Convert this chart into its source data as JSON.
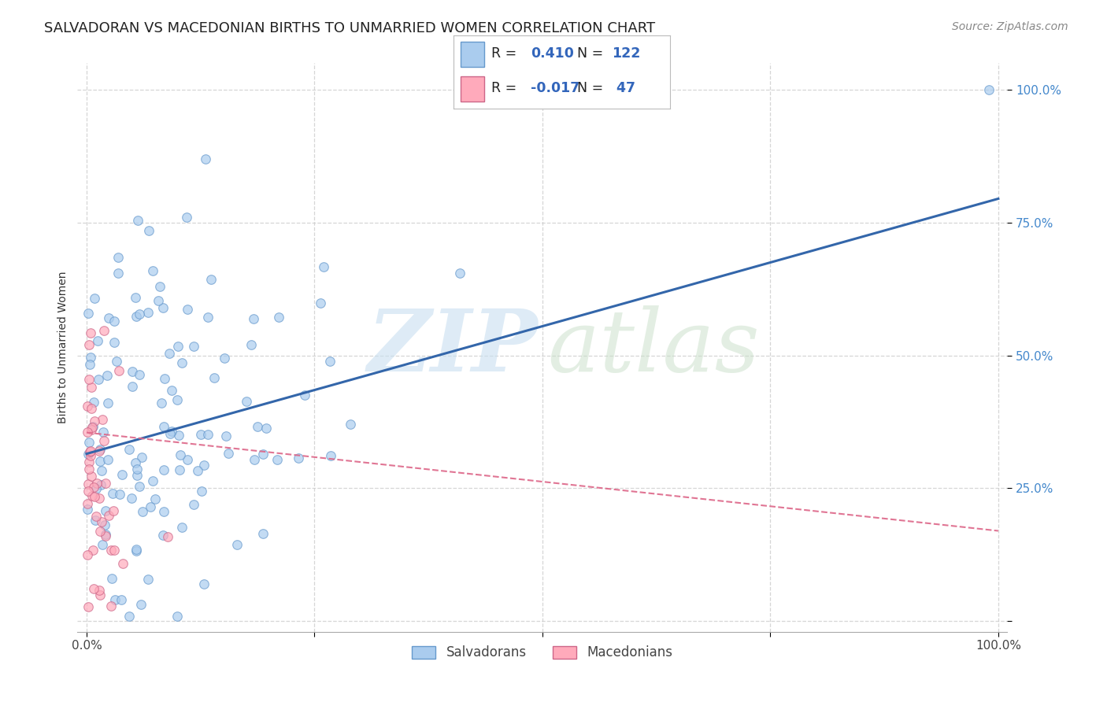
{
  "title": "SALVADORAN VS MACEDONIAN BIRTHS TO UNMARRIED WOMEN CORRELATION CHART",
  "source": "Source: ZipAtlas.com",
  "ylabel": "Births to Unmarried Women",
  "background_color": "#ffffff",
  "grid_color": "#cccccc",
  "blue_scatter_color": "#aaccee",
  "blue_scatter_edge": "#6699cc",
  "pink_scatter_color": "#ffaabb",
  "pink_scatter_edge": "#cc6688",
  "blue_line_color": "#3366aa",
  "pink_line_color": "#dd6688",
  "blue_line": {
    "x0": 0.0,
    "y0": 0.315,
    "x1": 1.0,
    "y1": 0.795
  },
  "pink_line": {
    "x0": 0.0,
    "y0": 0.355,
    "x1": 0.13,
    "y1": 0.335
  },
  "xlim": [
    -0.01,
    1.01
  ],
  "ylim": [
    -0.02,
    1.05
  ],
  "xticks": [
    0.0,
    0.25,
    0.5,
    0.75,
    1.0
  ],
  "xticklabels": [
    "0.0%",
    "",
    "",
    "",
    "100.0%"
  ],
  "yticks": [
    0.0,
    0.25,
    0.5,
    0.75,
    1.0
  ],
  "yticklabels": [
    "",
    "25.0%",
    "50.0%",
    "75.0%",
    "100.0%"
  ],
  "title_fontsize": 13,
  "axis_label_fontsize": 10,
  "tick_fontsize": 11,
  "source_fontsize": 10,
  "legend_blue_text": "R =  0.410   N = 122",
  "legend_pink_text": "R = -0.017   N =  47"
}
